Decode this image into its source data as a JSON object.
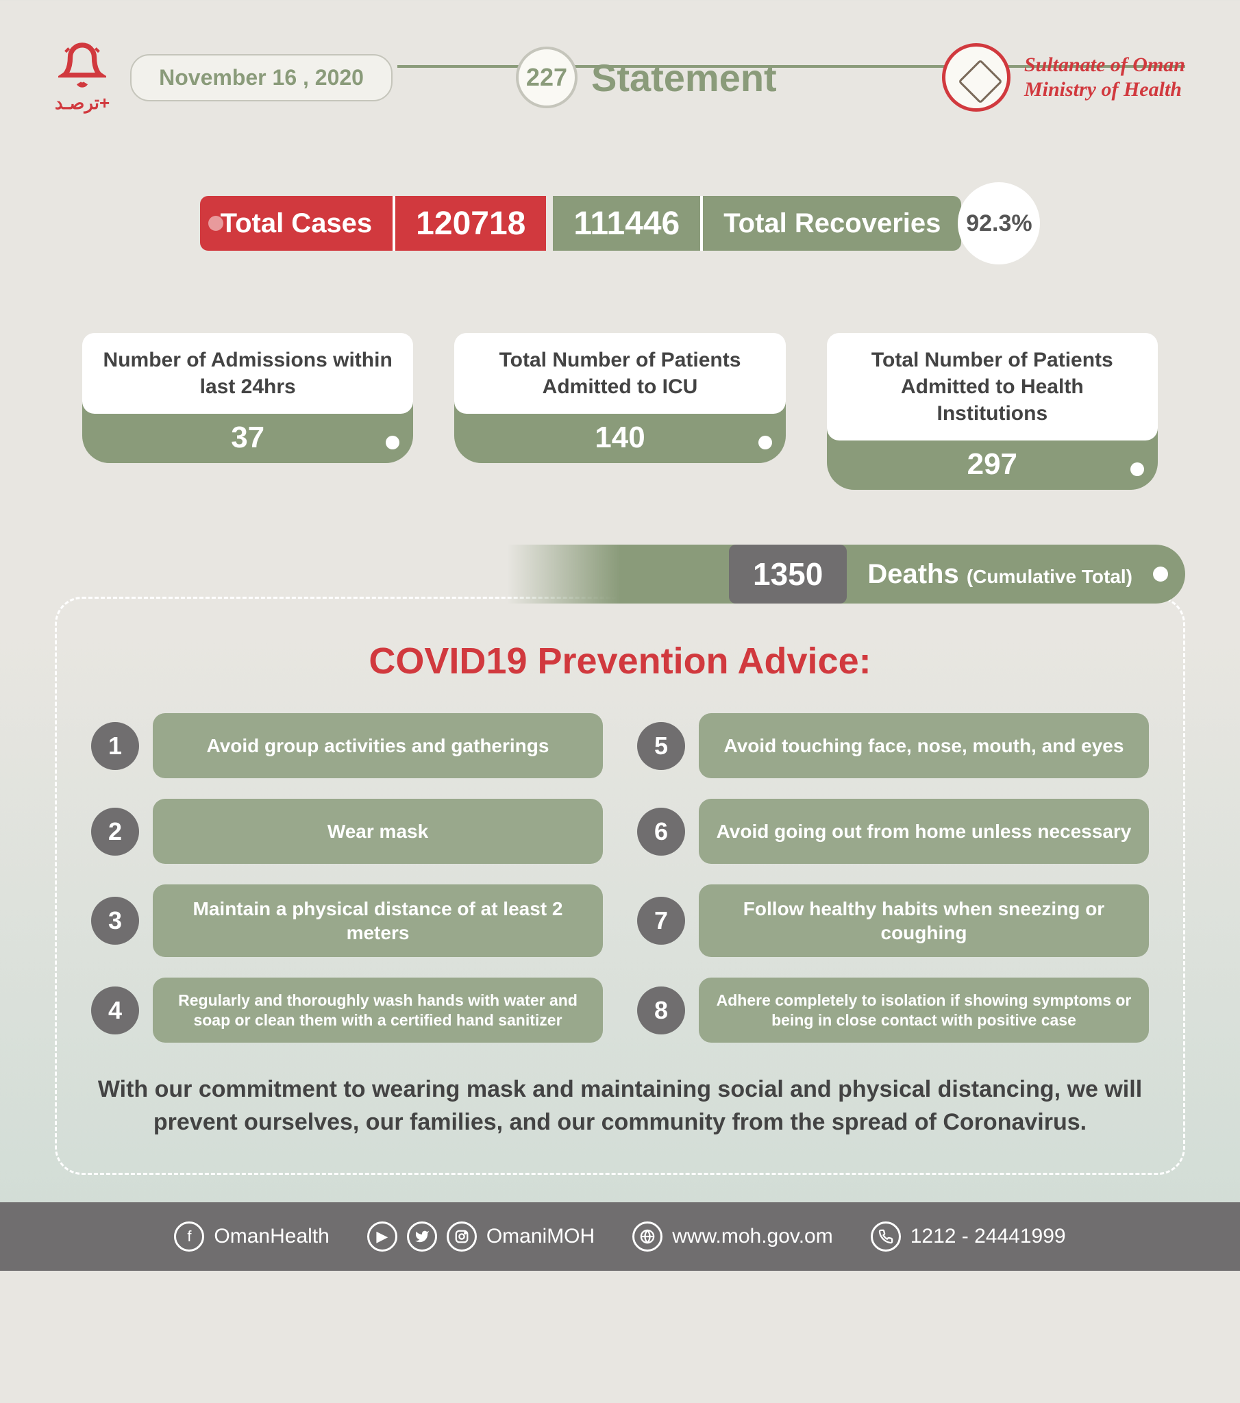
{
  "colors": {
    "red": "#d1393e",
    "green": "#8a9b7a",
    "green_light": "#99a88c",
    "gray": "#706e6f",
    "bg_top": "#e8e6e1",
    "bg_bottom": "#d0dcd5",
    "text_dark": "#434343"
  },
  "header": {
    "arabic": "ترصـد+",
    "date": "November 16 , 2020",
    "number": "227",
    "statement": "Statement",
    "ministry_line1": "Sultanate of Oman",
    "ministry_line2": "Ministry of Health"
  },
  "top_stats": {
    "total_cases_label": "Total Cases",
    "total_cases_value": "120718",
    "total_recoveries_label": "Total Recoveries",
    "total_recoveries_value": "111446",
    "recovery_rate": "92.3%"
  },
  "three_stats": [
    {
      "title": "Number of Admissions within last 24hrs",
      "value": "37"
    },
    {
      "title": "Total Number of Patients Admitted to ICU",
      "value": "140"
    },
    {
      "title": "Total Number of Patients Admitted to Health Institutions",
      "value": "297"
    }
  ],
  "deaths": {
    "value": "1350",
    "label": "Deaths",
    "sublabel": "(Cumulative Total)"
  },
  "advice": {
    "title": "COVID19 Prevention Advice:",
    "items": [
      {
        "n": "1",
        "text": "Avoid  group activities and gatherings"
      },
      {
        "n": "5",
        "text": "Avoid touching face, nose, mouth, and eyes"
      },
      {
        "n": "2",
        "text": "Wear mask"
      },
      {
        "n": "6",
        "text": "Avoid going out from home unless necessary"
      },
      {
        "n": "3",
        "text": "Maintain a physical distance of at least 2 meters"
      },
      {
        "n": "7",
        "text": "Follow healthy habits when sneezing or coughing"
      },
      {
        "n": "4",
        "text": "Regularly and thoroughly wash hands with water and soap or clean them with a certified hand sanitizer",
        "small": true
      },
      {
        "n": "8",
        "text": "Adhere completely to  isolation if showing symptoms or being in close contact with positive case",
        "small": true
      }
    ],
    "commitment": "With our commitment to wearing mask and  maintaining social and physical distancing, we will prevent ourselves, our families, and our community from the spread of Coronavirus."
  },
  "footer": {
    "facebook": "OmanHealth",
    "social": "OmaniMOH",
    "web": "www.moh.gov.om",
    "phone": "1212 - 24441999"
  }
}
